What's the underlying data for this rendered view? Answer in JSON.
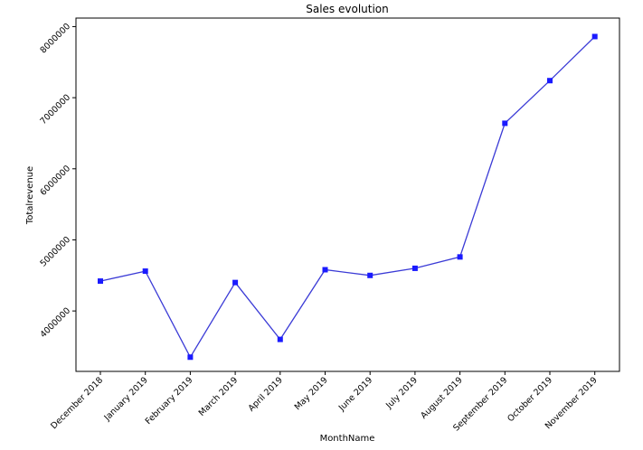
{
  "chart_data": {
    "type": "line",
    "title": "Sales  evolution",
    "xlabel": "MonthName",
    "ylabel": "Totalrevenue",
    "categories": [
      "December 2018",
      "January 2019",
      "February 2019",
      "March 2019",
      "April 2019",
      "May 2019",
      "June 2019",
      "July 2019",
      "August 2019",
      "September 2019",
      "October 2019",
      "November 2019"
    ],
    "series": [
      {
        "values": [
          4420000,
          4560000,
          3350000,
          4400000,
          3600000,
          4580000,
          4500000,
          4600000,
          4760000,
          6640000,
          7240000,
          7860000
        ]
      }
    ],
    "yticks": [
      4000000,
      5000000,
      6000000,
      7000000,
      8000000
    ],
    "ytick_labels": [
      "4000000",
      "5000000",
      "6000000",
      "7000000",
      "8000000"
    ],
    "ylim": [
      3150000,
      8120000
    ],
    "grid": false,
    "line_color": "#3b3bd6",
    "marker_color": "#1a1aff",
    "marker": "square"
  }
}
